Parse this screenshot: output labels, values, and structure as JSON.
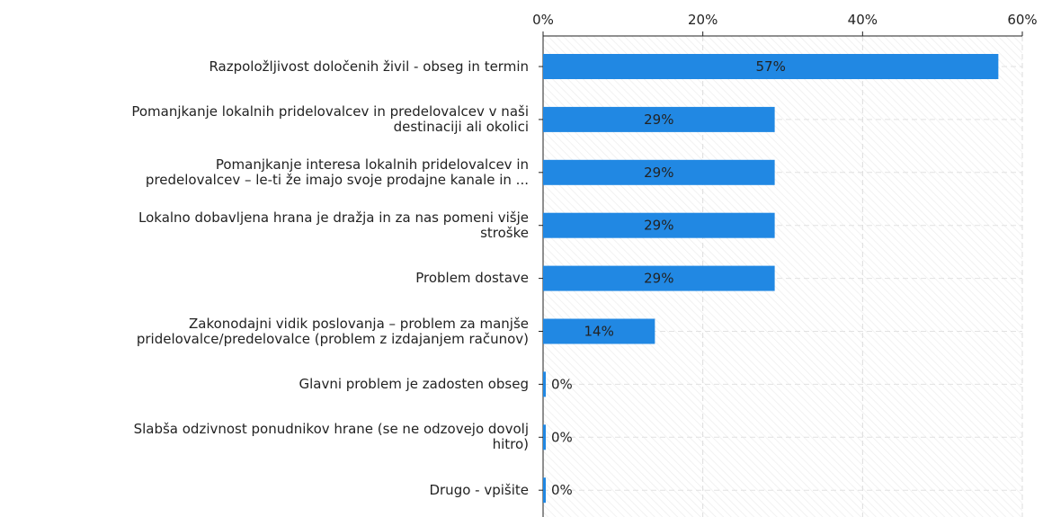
{
  "chart_data": {
    "type": "barh",
    "categories": [
      "Razpoložljivost določenih živil - obseg in termin",
      "Pomanjkanje lokalnih pridelovalcev in predelovalcev v naši\ndestinaciji ali okolici",
      "Pomanjkanje interesa lokalnih pridelovalcev in\npredelovalcev – le-ti že imajo svoje prodajne kanale in ...",
      "Lokalno dobavljena hrana je dražja in za nas pomeni višje\nstroške",
      "Problem dostave",
      "Zakonodajni vidik poslovanja – problem za manjše\npridelovalce/predelovalce (problem z izdajanjem računov)",
      "Glavni problem je zadosten obseg",
      "Slabša odzivnost ponudnikov hrane (se ne odzovejo dovolj\nhitro)",
      "Drugo - vpišite"
    ],
    "values": [
      57,
      29,
      29,
      29,
      29,
      14,
      0,
      0,
      0
    ],
    "value_labels": [
      "57%",
      "29%",
      "29%",
      "29%",
      "29%",
      "14%",
      "0%",
      "0%",
      "0%"
    ],
    "color": "#2188e3",
    "xlim": [
      0,
      60
    ],
    "xticks": [
      {
        "value": 0,
        "label": "0%"
      },
      {
        "value": 20,
        "label": "20%"
      },
      {
        "value": 40,
        "label": "40%"
      },
      {
        "value": 60,
        "label": "60%"
      }
    ],
    "grid": true
  }
}
